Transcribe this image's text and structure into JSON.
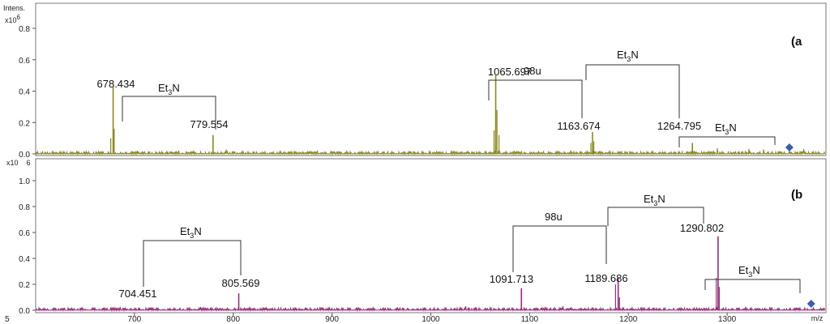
{
  "chart_data": {
    "type": "line",
    "x_axis": {
      "label": "m/z",
      "ticks": [
        700,
        800,
        900,
        1000,
        1100,
        1200,
        1300
      ],
      "min": 600,
      "max": 1400
    },
    "y_axis_label": "Intens.",
    "charts": [
      {
        "panel": "(a",
        "multiplier_base": "x10",
        "multiplier_exp": "6",
        "ylim": [
          0,
          1.0
        ],
        "y_ticks": [
          "0.0",
          "0.2",
          "0.4",
          "0.6",
          "0.8"
        ],
        "y_tick_values": [
          0,
          0.2,
          0.4,
          0.6,
          0.8
        ],
        "color": "#8b8a1d",
        "peaks": [
          {
            "mz": 678.434,
            "label": "678.434",
            "intensity": 0.43
          },
          {
            "mz": 779.554,
            "label": "779.554",
            "intensity": 0.12
          },
          {
            "mz": 1065.697,
            "label": "1065.697",
            "intensity": 0.5
          },
          {
            "mz": 1163.674,
            "label": "1163.674",
            "intensity": 0.14
          },
          {
            "mz": 1264.795,
            "label": "1264.795",
            "intensity": 0.07
          }
        ],
        "minor_peaks": [
          {
            "mz": 676,
            "intensity": 0.1
          },
          {
            "mz": 679.5,
            "intensity": 0.16
          },
          {
            "mz": 1064,
            "intensity": 0.15
          },
          {
            "mz": 1067,
            "intensity": 0.28
          },
          {
            "mz": 1069,
            "intensity": 0.12
          },
          {
            "mz": 1162,
            "intensity": 0.07
          },
          {
            "mz": 1165,
            "intensity": 0.08
          }
        ],
        "annotations": [
          {
            "text": "98u"
          },
          {
            "base": "Et",
            "sub": "3",
            "rest": "N"
          },
          {
            "base": "Et",
            "sub": "3",
            "rest": "N"
          },
          {
            "base": "Et",
            "sub": "3",
            "rest": "N"
          }
        ],
        "marker_mz": 1363
      },
      {
        "panel": "(b",
        "multiplier_base": "x10",
        "multiplier_exp": "6",
        "ylim": [
          0,
          1.1
        ],
        "y_ticks": [
          "0.0",
          "0.2",
          "0.4",
          "0.6",
          "0.8",
          "1.0"
        ],
        "y_tick_values": [
          0,
          0.2,
          0.4,
          0.6,
          0.8,
          1.0
        ],
        "color": "#9a2b7a",
        "peaks": [
          {
            "mz": 704.451,
            "label": "704.451",
            "intensity": 0.02
          },
          {
            "mz": 805.569,
            "label": "805.569",
            "intensity": 0.13
          },
          {
            "mz": 1091.713,
            "label": "1091.713",
            "intensity": 0.17
          },
          {
            "mz": 1189.686,
            "label": "1189.686",
            "intensity": 0.25
          },
          {
            "mz": 1290.802,
            "label": "1290.802",
            "intensity": 0.57
          }
        ],
        "minor_peaks": [
          {
            "mz": 1187,
            "intensity": 0.2
          },
          {
            "mz": 1191,
            "intensity": 0.1
          },
          {
            "mz": 1289,
            "intensity": 0.25
          },
          {
            "mz": 1292,
            "intensity": 0.18
          }
        ],
        "annotations": [
          {
            "text": "98u"
          },
          {
            "base": "Et",
            "sub": "3",
            "rest": "N"
          },
          {
            "base": "Et",
            "sub": "3",
            "rest": "N"
          },
          {
            "base": "Et",
            "sub": "3",
            "rest": "N"
          }
        ],
        "marker_mz": 1385
      }
    ]
  }
}
